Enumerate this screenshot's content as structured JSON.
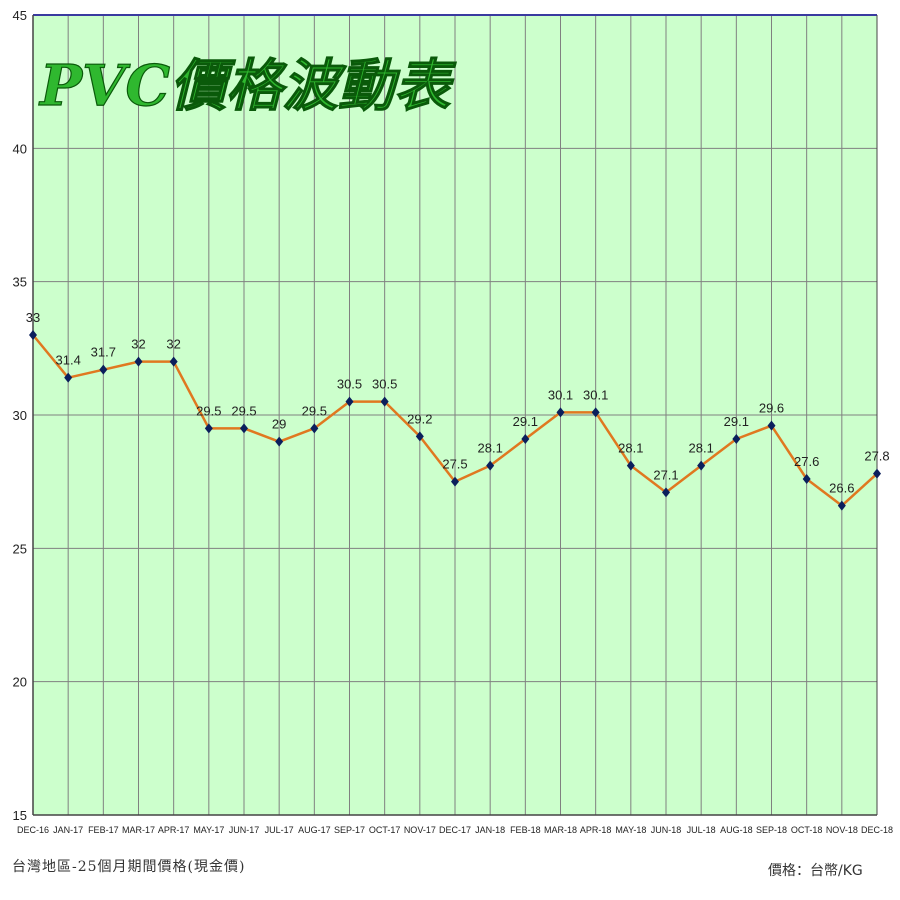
{
  "chart_data": {
    "type": "line",
    "title": "PVC價格波動表",
    "categories": [
      "DEC-16",
      "JAN-17",
      "FEB-17",
      "MAR-17",
      "APR-17",
      "MAY-17",
      "JUN-17",
      "JUL-17",
      "AUG-17",
      "SEP-17",
      "OCT-17",
      "NOV-17",
      "DEC-17",
      "JAN-18",
      "FEB-18",
      "MAR-18",
      "APR-18",
      "MAY-18",
      "JUN-18",
      "JUL-18",
      "AUG-18",
      "SEP-18",
      "OCT-18",
      "NOV-18",
      "DEC-18"
    ],
    "values": [
      33,
      31.4,
      31.7,
      32,
      32,
      29.5,
      29.5,
      29,
      29.5,
      30.5,
      30.5,
      29.2,
      27.5,
      28.1,
      29.1,
      30.1,
      30.1,
      28.1,
      27.1,
      28.1,
      29.1,
      29.6,
      27.6,
      26.6,
      27.8
    ],
    "ylim": [
      15,
      45
    ],
    "yticks": [
      15,
      20,
      25,
      30,
      35,
      40,
      45
    ],
    "grid": true,
    "legend": "none",
    "colors": {
      "plot_background": "#ccffcc",
      "line": "#e07820",
      "marker": "#0b1f5c",
      "grid": "#808080",
      "title_fill": "#2fb82f",
      "border": "#3a3aa0"
    }
  },
  "footer": {
    "left": "台灣地區-25個月期間價格(現金價)",
    "right": "價格：台幣/KG"
  }
}
